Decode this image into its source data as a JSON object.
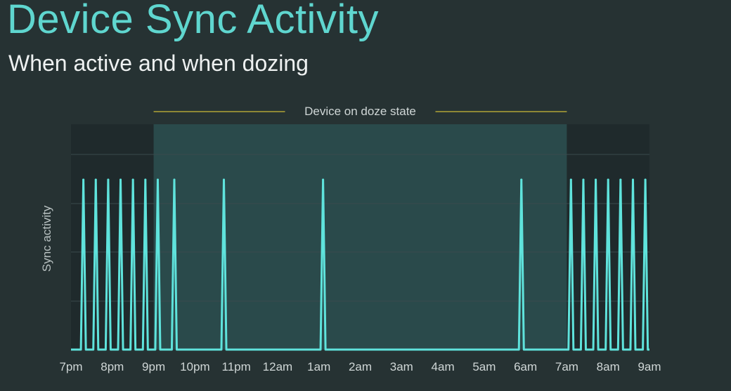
{
  "slide": {
    "title": "Device Sync Activity",
    "subtitle": "When active and when dozing"
  },
  "colors": {
    "background": "#263233",
    "title": "#5fd6cf",
    "line": "#5fe3dc",
    "doze_band": "#2a4a4b",
    "active_band": "#1f2a2c",
    "doze_bracket": "#b0a336",
    "text": "#cfd6d6"
  },
  "chart_data": {
    "type": "line",
    "title": "",
    "xlabel": "",
    "ylabel": "Sync activity",
    "x_ticks": [
      "7pm",
      "8pm",
      "9pm",
      "10pm",
      "11pm",
      "12am",
      "1am",
      "2am",
      "3am",
      "4am",
      "5am",
      "6am",
      "7am",
      "8am",
      "9am"
    ],
    "x_range": [
      0,
      14
    ],
    "y_range": [
      0,
      1
    ],
    "doze_period": {
      "label": "Device on doze state",
      "start": 2,
      "end": 12
    },
    "series": [
      {
        "values_description": "",
        "spike_height": 1,
        "spikes_at": [
          0.3,
          0.6,
          0.9,
          1.2,
          1.5,
          1.8,
          2.1,
          2.5,
          3.7,
          6.1,
          10.9,
          12.1,
          12.4,
          12.7,
          13.0,
          13.3,
          13.6,
          13.9
        ]
      }
    ],
    "grid": "horizontal",
    "legend": "none"
  }
}
